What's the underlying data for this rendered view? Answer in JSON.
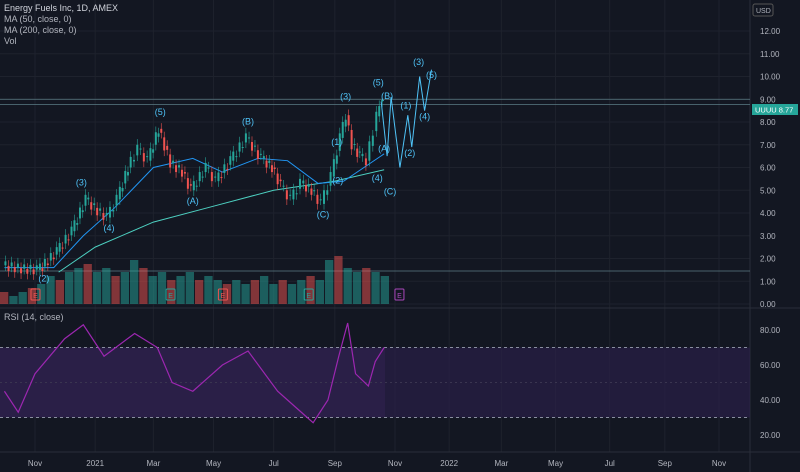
{
  "header": {
    "title": "Energy Fuels Inc, 1D, AMEX",
    "indicators": [
      "MA (50, close, 0)",
      "MA (200, close, 0)",
      "Vol"
    ],
    "rsi_label": "RSI (14, close)",
    "currency": "USD"
  },
  "last_price": {
    "symbol": "UUUU",
    "value": "8.77"
  },
  "colors": {
    "background": "#131722",
    "up": "#26a69a",
    "down": "#ef5350",
    "ma50": "#2196f3",
    "ma200": "#4dd0c1",
    "waves": "#4fc3f7",
    "rsi": "#9c27b0",
    "rsi_band": "#2a1f47",
    "label_bg": "#26a69a"
  },
  "chart_data": [
    {
      "type": "line",
      "title": "Energy Fuels Inc, 1D, AMEX",
      "ylim": [
        0,
        12.5
      ],
      "xlim": [
        "2020-10-01",
        "2021-11-30"
      ],
      "y_ticks": [
        "12.00",
        "11.00",
        "10.00",
        "9.00",
        "8.00",
        "7.00",
        "6.00",
        "5.00",
        "4.00",
        "3.00",
        "2.00",
        "1.00",
        "0.00"
      ],
      "x_ticks": [
        "Nov",
        "2021",
        "Mar",
        "May",
        "Jul",
        "Sep",
        "Nov",
        "2022",
        "Mar",
        "May",
        "Jul",
        "Sep",
        "Nov"
      ],
      "price": [
        [
          "2020-10-01",
          1.7
        ],
        [
          "2020-10-20",
          1.55
        ],
        [
          "2020-11-05",
          1.5
        ],
        [
          "2020-11-10",
          1.65
        ],
        [
          "2020-11-25",
          2.3
        ],
        [
          "2020-12-10",
          3.2
        ],
        [
          "2020-12-24",
          4.6
        ],
        [
          "2021-01-05",
          4.1
        ],
        [
          "2021-01-15",
          3.8
        ],
        [
          "2021-01-25",
          4.6
        ],
        [
          "2021-02-05",
          6.0
        ],
        [
          "2021-02-15",
          6.8
        ],
        [
          "2021-02-25",
          6.3
        ],
        [
          "2021-03-08",
          7.7
        ],
        [
          "2021-03-20",
          6.2
        ],
        [
          "2021-04-01",
          5.8
        ],
        [
          "2021-04-10",
          5.0
        ],
        [
          "2021-04-25",
          6.0
        ],
        [
          "2021-05-05",
          5.4
        ],
        [
          "2021-05-20",
          6.3
        ],
        [
          "2021-06-05",
          7.3
        ],
        [
          "2021-06-20",
          6.4
        ],
        [
          "2021-07-01",
          6.0
        ],
        [
          "2021-07-10",
          5.2
        ],
        [
          "2021-07-20",
          4.6
        ],
        [
          "2021-07-30",
          5.3
        ],
        [
          "2021-08-10",
          5.0
        ],
        [
          "2021-08-20",
          4.4
        ],
        [
          "2021-08-30",
          5.6
        ],
        [
          "2021-09-08",
          7.3
        ],
        [
          "2021-09-14",
          8.3
        ],
        [
          "2021-09-20",
          7.0
        ],
        [
          "2021-09-28",
          6.5
        ],
        [
          "2021-10-05",
          6.3
        ],
        [
          "2021-10-12",
          7.6
        ],
        [
          "2021-10-18",
          8.9
        ],
        [
          "2021-10-21",
          8.77
        ]
      ],
      "ma50": [
        [
          "2020-10-01",
          1.6
        ],
        [
          "2020-11-20",
          1.6
        ],
        [
          "2020-12-20",
          3.0
        ],
        [
          "2021-01-20",
          4.2
        ],
        [
          "2021-03-01",
          6.0
        ],
        [
          "2021-04-10",
          6.4
        ],
        [
          "2021-05-10",
          5.8
        ],
        [
          "2021-06-15",
          6.4
        ],
        [
          "2021-07-15",
          6.3
        ],
        [
          "2021-08-15",
          5.3
        ],
        [
          "2021-09-10",
          5.4
        ],
        [
          "2021-10-21",
          6.6
        ]
      ],
      "ma200": [
        [
          "2020-11-25",
          1.4
        ],
        [
          "2021-01-01",
          2.5
        ],
        [
          "2021-03-01",
          3.6
        ],
        [
          "2021-05-01",
          4.3
        ],
        [
          "2021-07-01",
          5.0
        ],
        [
          "2021-09-01",
          5.4
        ],
        [
          "2021-10-21",
          5.9
        ]
      ],
      "projection": [
        [
          "2021-10-18",
          8.9
        ],
        [
          "2021-10-24",
          6.5
        ],
        [
          "2021-10-28",
          9.1
        ],
        [
          "2021-11-06",
          6.0
        ],
        [
          "2021-11-14",
          8.3
        ],
        [
          "2021-11-18",
          6.9
        ],
        [
          "2021-11-26",
          10.0
        ],
        [
          "2021-12-01",
          8.5
        ],
        [
          "2021-12-08",
          10.3
        ]
      ],
      "horizontal_levels": [
        9.0,
        8.77,
        1.45
      ],
      "wave_labels": [
        [
          "(2)",
          "2020-11-10",
          1.0
        ],
        [
          "(3)",
          "2020-12-18",
          5.2
        ],
        [
          "(4)",
          "2021-01-15",
          3.2
        ],
        [
          "(5)",
          "2021-03-08",
          8.3
        ],
        [
          "(A)",
          "2021-04-10",
          4.4
        ],
        [
          "(B)",
          "2021-06-05",
          7.9
        ],
        [
          "(C)",
          "2021-08-20",
          3.8
        ],
        [
          "(2)",
          "2021-09-04",
          5.3
        ],
        [
          "(1)",
          "2021-09-03",
          7.0
        ],
        [
          "(3)",
          "2021-09-12",
          9.0
        ],
        [
          "(4)",
          "2021-10-14",
          5.4
        ],
        [
          "(A)",
          "2021-10-21",
          6.7
        ],
        [
          "(5)",
          "2021-10-15",
          9.6
        ],
        [
          "(B)",
          "2021-10-24",
          9.1
        ],
        [
          "(C)",
          "2021-10-27",
          5.7
        ],
        [
          "(1)",
          "2021-11-12",
          8.6
        ],
        [
          "(2)",
          "2021-11-16",
          6.5
        ],
        [
          "(3)",
          "2021-11-25",
          10.5
        ],
        [
          "(4)",
          "2021-12-01",
          8.1
        ],
        [
          "(5)",
          "2021-12-08",
          11.0
        ]
      ],
      "volume": [
        3,
        2,
        3,
        4,
        5,
        7,
        6,
        8,
        9,
        10,
        8,
        9,
        7,
        8,
        11,
        9,
        7,
        8,
        6,
        7,
        8,
        6,
        7,
        6,
        5,
        6,
        5,
        6,
        7,
        5,
        6,
        5,
        6,
        7,
        6,
        11,
        12,
        9,
        8,
        9,
        8,
        7
      ],
      "earnings": [
        [
          "2020-11-01",
          "past-miss",
          "E"
        ],
        [
          "2021-03-18",
          "past-beat",
          "E"
        ],
        [
          "2021-05-10",
          "past-miss",
          "E"
        ],
        [
          "2021-08-05",
          "past-beat",
          "E"
        ],
        [
          "2021-11-05",
          "upcoming",
          "E"
        ]
      ]
    },
    {
      "type": "line",
      "title": "RSI (14, close)",
      "ylim": [
        15,
        90
      ],
      "y_ticks": [
        "80.00",
        "60.00",
        "40.00",
        "20.00"
      ],
      "band": [
        30,
        70
      ],
      "values": [
        [
          "2020-10-01",
          45
        ],
        [
          "2020-10-15",
          33
        ],
        [
          "2020-11-01",
          55
        ],
        [
          "2020-12-01",
          75
        ],
        [
          "2020-12-20",
          83
        ],
        [
          "2021-01-10",
          65
        ],
        [
          "2021-02-10",
          78
        ],
        [
          "2021-03-05",
          70
        ],
        [
          "2021-03-20",
          50
        ],
        [
          "2021-04-10",
          45
        ],
        [
          "2021-05-10",
          60
        ],
        [
          "2021-06-05",
          68
        ],
        [
          "2021-07-05",
          45
        ],
        [
          "2021-07-25",
          35
        ],
        [
          "2021-08-10",
          27
        ],
        [
          "2021-08-25",
          40
        ],
        [
          "2021-09-05",
          65
        ],
        [
          "2021-09-14",
          84
        ],
        [
          "2021-09-22",
          55
        ],
        [
          "2021-10-05",
          48
        ],
        [
          "2021-10-12",
          62
        ],
        [
          "2021-10-21",
          70
        ]
      ]
    }
  ]
}
